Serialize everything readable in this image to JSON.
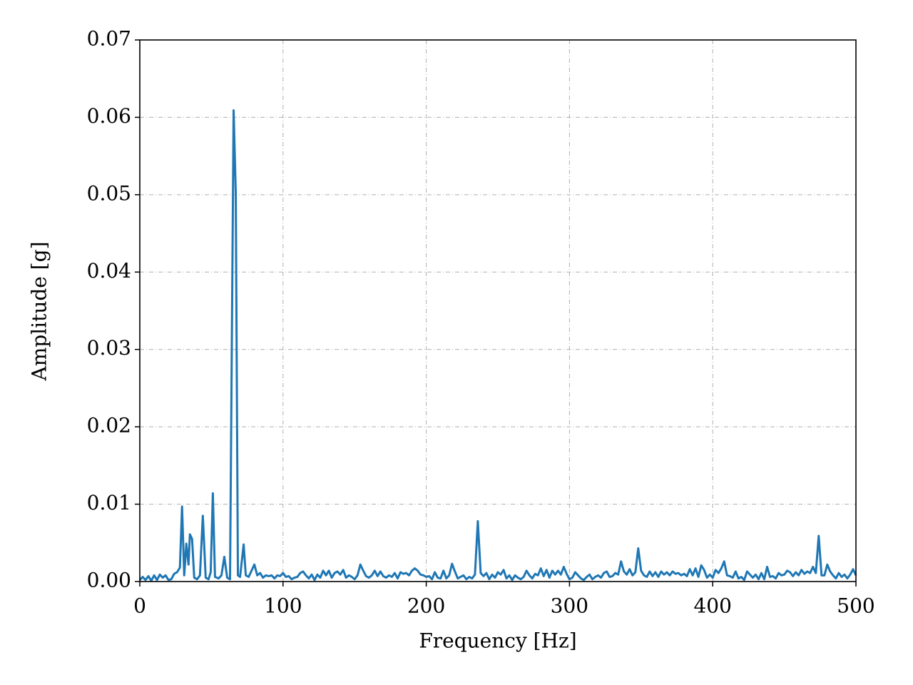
{
  "chart_data": {
    "type": "line",
    "x_label": "Frequency [Hz]",
    "y_label": "Amplitude [g]",
    "xlim": [
      0,
      500
    ],
    "xticks": [
      0,
      100,
      200,
      300,
      400,
      500
    ],
    "ylim": [
      0,
      0.07
    ],
    "yticks": [
      {
        "value": 0,
        "label": "0.00"
      },
      0.01,
      0.02,
      0.03,
      0.04,
      0.05,
      0.06,
      0.07
    ],
    "grid": true,
    "x": [
      0,
      2,
      4,
      6,
      8,
      10,
      12,
      14,
      16,
      18,
      20,
      22,
      24,
      26,
      28,
      29.5,
      31,
      32.5,
      34,
      35,
      36.5,
      38,
      40,
      42,
      44,
      46,
      48,
      49.5,
      51,
      52.5,
      55,
      57,
      59,
      61,
      63,
      65.5,
      67,
      68.5,
      70,
      72.5,
      74,
      76,
      78,
      80,
      82,
      84,
      86,
      88,
      90,
      92,
      94,
      96,
      98,
      100,
      102,
      104,
      106,
      108,
      110,
      112,
      114,
      116,
      118,
      120,
      122,
      124,
      126,
      128,
      130,
      132,
      134,
      136,
      138,
      140,
      142,
      144,
      146,
      148,
      150,
      152,
      154,
      156,
      158,
      160,
      162,
      164,
      166,
      168,
      170,
      172,
      174,
      176,
      178,
      180,
      182,
      184,
      186,
      188,
      190,
      192,
      194,
      196,
      198,
      200,
      202,
      204,
      206,
      208,
      210,
      212,
      214,
      216,
      218,
      220,
      222,
      224,
      226,
      228,
      230,
      232,
      234,
      236,
      238,
      240,
      242,
      244,
      246,
      248,
      250,
      252,
      254,
      256,
      258,
      260,
      262,
      264,
      266,
      268,
      270,
      272,
      274,
      276,
      278,
      280,
      282,
      284,
      286,
      288,
      290,
      292,
      294,
      296,
      298,
      300,
      302,
      304,
      306,
      308,
      310,
      312,
      314,
      316,
      318,
      320,
      322,
      324,
      326,
      328,
      330,
      332,
      334,
      336,
      338,
      340,
      342,
      344,
      346,
      348,
      350,
      352,
      354,
      356,
      358,
      360,
      362,
      364,
      366,
      368,
      370,
      372,
      374,
      376,
      378,
      380,
      382,
      384,
      386,
      388,
      390,
      392,
      394,
      396,
      398,
      400,
      402,
      404,
      406,
      408,
      410,
      412,
      414,
      416,
      418,
      420,
      422,
      424,
      426,
      428,
      430,
      432,
      434,
      436,
      438,
      440,
      442,
      444,
      446,
      448,
      450,
      452,
      454,
      456,
      458,
      460,
      462,
      464,
      466,
      468,
      470,
      472,
      474,
      476,
      478,
      480,
      482,
      484,
      486,
      488,
      490,
      492,
      494,
      496,
      498,
      500
    ],
    "series": [
      {
        "color": "#1f77b4",
        "values": [
          0.0002,
          0.0006,
          0.0002,
          0.0007,
          0.0001,
          0.0008,
          0.0002,
          0.0009,
          0.0005,
          0.0008,
          0.0002,
          0.0003,
          0.001,
          0.0012,
          0.0018,
          0.0097,
          0.0008,
          0.0049,
          0.0022,
          0.0061,
          0.0055,
          0.0005,
          0.0003,
          0.0008,
          0.0085,
          0.0005,
          0.0003,
          0.0012,
          0.0114,
          0.0006,
          0.0004,
          0.0008,
          0.0032,
          0.0005,
          0.0003,
          0.0609,
          0.0502,
          0.0008,
          0.0006,
          0.0048,
          0.0008,
          0.0006,
          0.0014,
          0.0022,
          0.0008,
          0.0011,
          0.0005,
          0.0008,
          0.0007,
          0.0008,
          0.0004,
          0.0008,
          0.0007,
          0.0011,
          0.0006,
          0.0007,
          0.0003,
          0.0005,
          0.0006,
          0.0011,
          0.0013,
          0.0008,
          0.0004,
          0.0009,
          0.0002,
          0.0009,
          0.0005,
          0.0014,
          0.0008,
          0.0014,
          0.0005,
          0.0011,
          0.0013,
          0.0009,
          0.0015,
          0.0005,
          0.0008,
          0.0006,
          0.0003,
          0.0008,
          0.0022,
          0.0014,
          0.0007,
          0.0005,
          0.0008,
          0.0014,
          0.0007,
          0.0013,
          0.0007,
          0.0005,
          0.0008,
          0.0006,
          0.0011,
          0.0004,
          0.0012,
          0.001,
          0.0011,
          0.0008,
          0.0014,
          0.0017,
          0.0014,
          0.0009,
          0.0008,
          0.0006,
          0.0007,
          0.0003,
          0.0012,
          0.0005,
          0.0004,
          0.0014,
          0.0004,
          0.0008,
          0.0023,
          0.0013,
          0.0004,
          0.0006,
          0.0008,
          0.0003,
          0.0006,
          0.0004,
          0.0009,
          0.0078,
          0.0011,
          0.0007,
          0.0011,
          0.0003,
          0.0009,
          0.0005,
          0.0012,
          0.0009,
          0.0015,
          0.0004,
          0.0008,
          0.0002,
          0.0008,
          0.0005,
          0.0003,
          0.0006,
          0.0014,
          0.0008,
          0.0004,
          0.001,
          0.0008,
          0.0017,
          0.0007,
          0.0015,
          0.0005,
          0.0014,
          0.0009,
          0.0014,
          0.0009,
          0.0019,
          0.001,
          0.0003,
          0.0005,
          0.0012,
          0.0008,
          0.0004,
          0.0002,
          0.0006,
          0.0009,
          0.0003,
          0.0006,
          0.0008,
          0.0005,
          0.0011,
          0.0013,
          0.0006,
          0.0007,
          0.0011,
          0.0009,
          0.0026,
          0.0013,
          0.0009,
          0.0016,
          0.0008,
          0.0012,
          0.0043,
          0.0014,
          0.0008,
          0.0006,
          0.0013,
          0.0007,
          0.0012,
          0.0006,
          0.0013,
          0.0009,
          0.0012,
          0.0008,
          0.0013,
          0.001,
          0.0011,
          0.0008,
          0.001,
          0.0007,
          0.0016,
          0.0008,
          0.0017,
          0.0006,
          0.0021,
          0.0015,
          0.0005,
          0.0009,
          0.0005,
          0.0015,
          0.0011,
          0.0017,
          0.0026,
          0.0008,
          0.0007,
          0.0005,
          0.0013,
          0.0004,
          0.0006,
          0.0002,
          0.0013,
          0.0009,
          0.0005,
          0.0009,
          0.0003,
          0.0011,
          0.0003,
          0.0019,
          0.0006,
          0.0007,
          0.0004,
          0.0011,
          0.0008,
          0.0009,
          0.0014,
          0.0012,
          0.0007,
          0.0012,
          0.0008,
          0.0015,
          0.001,
          0.0013,
          0.0011,
          0.0019,
          0.0011,
          0.0059,
          0.0008,
          0.0008,
          0.0022,
          0.0013,
          0.0008,
          0.0004,
          0.0011,
          0.0006,
          0.0009,
          0.0004,
          0.0009,
          0.0016,
          0.0008
        ]
      }
    ]
  }
}
